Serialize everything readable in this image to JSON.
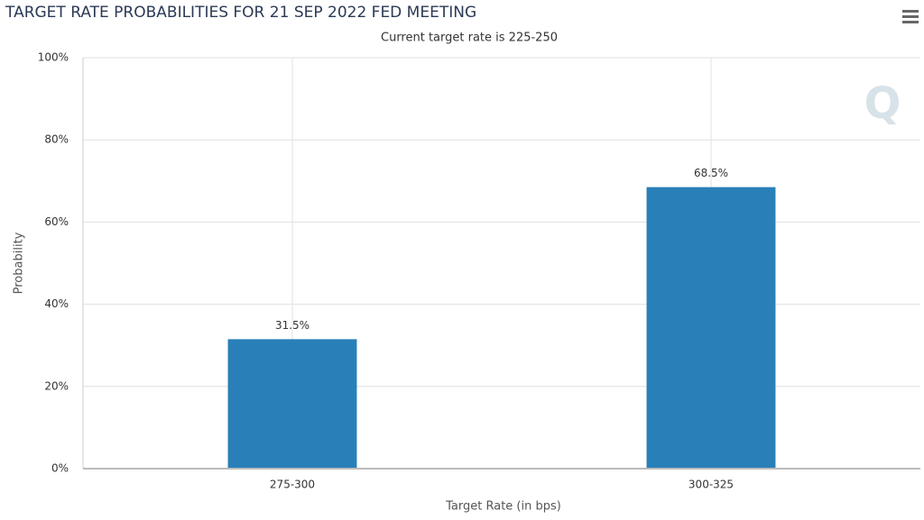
{
  "chart_data": {
    "type": "bar",
    "title": "TARGET RATE PROBABILITIES FOR 21 SEP 2022 FED MEETING",
    "subtitle": "Current target rate is 225-250",
    "x_label": "Target Rate (in bps)",
    "y_label": "Probability",
    "categories": [
      "275-300",
      "300-325"
    ],
    "values": [
      31.5,
      68.5
    ],
    "value_labels": [
      "31.5%",
      "68.5%"
    ],
    "color": "#2980b9",
    "ylim": [
      0,
      100
    ],
    "yticks": [
      {
        "value": 0,
        "label": "0%"
      },
      {
        "value": 20,
        "label": "20%"
      },
      {
        "value": 40,
        "label": "40%"
      },
      {
        "value": 60,
        "label": "60%"
      },
      {
        "value": 80,
        "label": "80%"
      },
      {
        "value": 100,
        "label": "100%"
      }
    ],
    "grid": true
  }
}
